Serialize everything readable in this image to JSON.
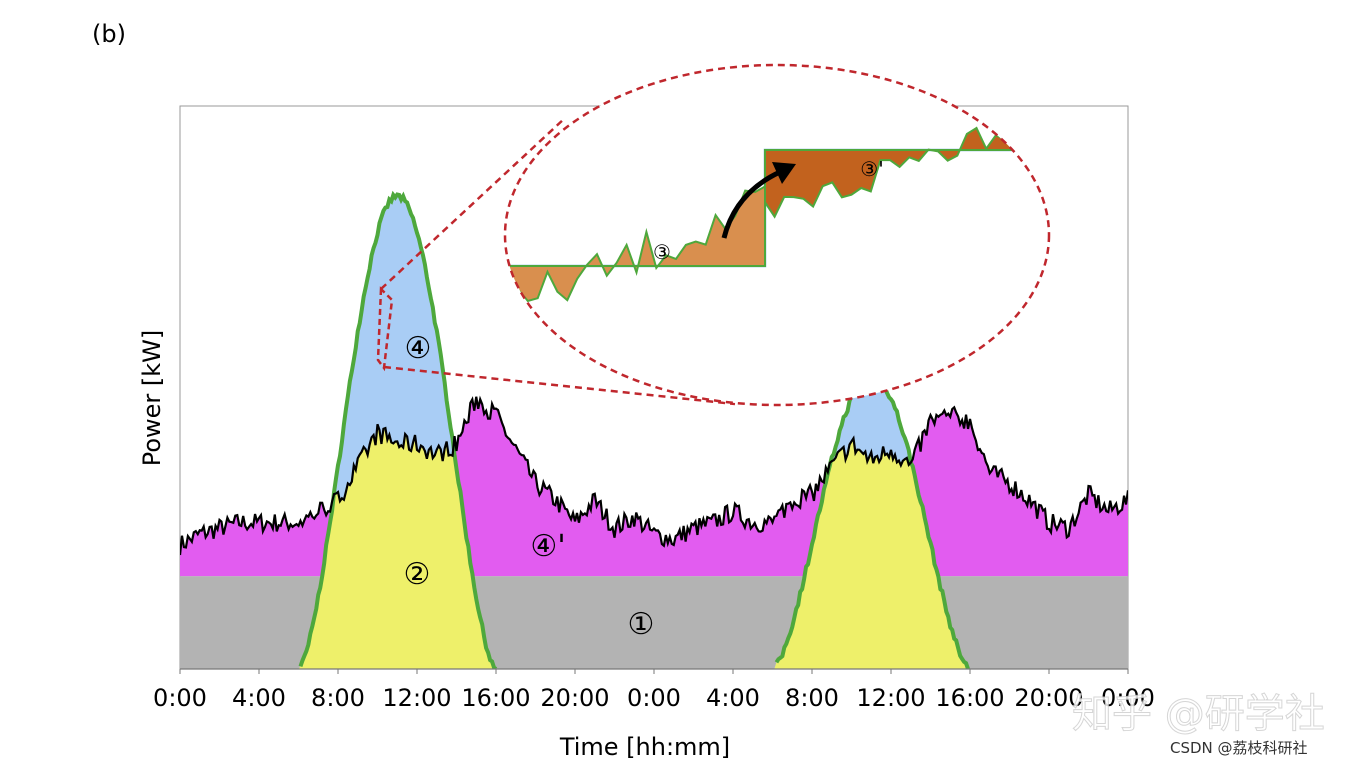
{
  "panel_label": "(b)",
  "watermark": "知乎 @研学社",
  "credit": "CSDN @荔枝科研社",
  "chart_data": {
    "type": "area",
    "title": "",
    "xlabel": "Time [hh:mm]",
    "ylabel": "Power [kW]",
    "x_tick_labels": [
      "0:00",
      "4:00",
      "8:00",
      "12:00",
      "16:00",
      "20:00",
      "0:00",
      "4:00",
      "8:00",
      "12:00",
      "16:00",
      "20:00",
      "0:00"
    ],
    "x_range_hours": [
      0,
      48
    ],
    "y_range_relative": [
      0,
      1
    ],
    "grid": false,
    "legend": "none",
    "region_labels": {
      "base": "①",
      "pv": "②",
      "pv_zoom": "③",
      "pv_zoom_shifted": "③'",
      "surplus": "④",
      "shifted": "④'"
    },
    "series_colors": {
      "base_load": "#b3b3b3",
      "pv_generation": "#eef06a",
      "pv_outline": "#4ea83c",
      "pv_surplus": "#a9cdf5",
      "shifted_load": "#e25cf0",
      "total_demand": "#000000",
      "zoom_fill_light": "#d98f4e",
      "zoom_fill_dark": "#c2621e",
      "zoom_outline": "#c0272d"
    },
    "base_load_level": 0.165,
    "pv_profile": {
      "hours": [
        6,
        7,
        8,
        9,
        10,
        11,
        12,
        13,
        14,
        15,
        16
      ],
      "peak_level": 0.84,
      "days": 2
    },
    "total_demand_profile": {
      "hours": [
        0,
        1,
        2,
        3,
        4,
        5,
        6,
        7,
        8,
        9,
        10,
        11,
        12,
        13,
        14,
        15,
        16,
        17,
        18,
        19,
        20,
        21,
        22,
        23,
        24,
        25,
        26,
        27,
        28,
        29,
        30,
        31,
        32,
        33,
        34,
        35,
        36,
        37,
        38,
        39,
        40,
        41,
        42,
        43,
        44,
        45,
        46,
        47,
        48
      ],
      "values": [
        0.22,
        0.24,
        0.25,
        0.26,
        0.26,
        0.26,
        0.26,
        0.28,
        0.3,
        0.36,
        0.42,
        0.4,
        0.4,
        0.38,
        0.4,
        0.48,
        0.45,
        0.39,
        0.33,
        0.3,
        0.26,
        0.3,
        0.25,
        0.27,
        0.24,
        0.23,
        0.25,
        0.26,
        0.28,
        0.26,
        0.26,
        0.3,
        0.31,
        0.36,
        0.4,
        0.37,
        0.39,
        0.36,
        0.44,
        0.45,
        0.44,
        0.35,
        0.33,
        0.3,
        0.26,
        0.25,
        0.31,
        0.28,
        0.3
      ]
    }
  }
}
